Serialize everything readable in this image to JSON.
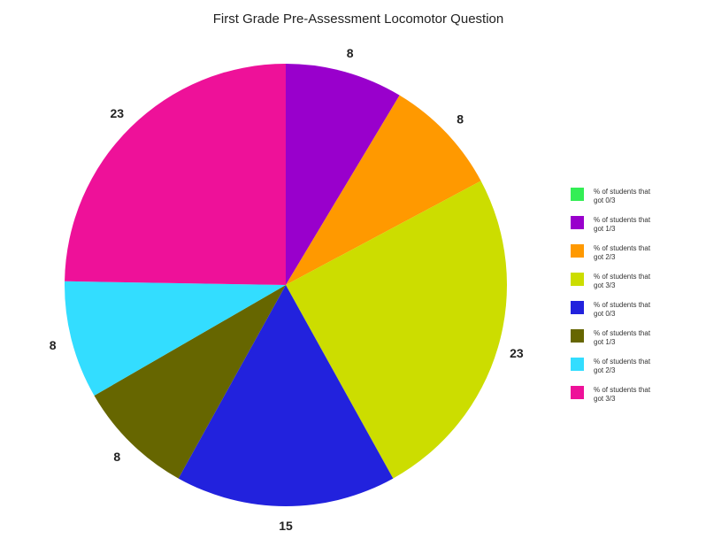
{
  "chart_data": {
    "type": "pie",
    "title": "First Grade Pre-Assessment Locomotor Question",
    "legend_position": "right",
    "slices": [
      {
        "name": "% of students that got 0/3",
        "value": 0,
        "label": "",
        "color": "#33ee55"
      },
      {
        "name": "% of students that got 1/3",
        "value": 8,
        "label": "8",
        "color": "#9900cc"
      },
      {
        "name": "% of students that got 2/3",
        "value": 8,
        "label": "8",
        "color": "#ff9900"
      },
      {
        "name": "% of students that got 3/3",
        "value": 23,
        "label": "23",
        "color": "#ccdd00"
      },
      {
        "name": "% of students that got 0/3",
        "value": 15,
        "label": "15",
        "color": "#2222dd"
      },
      {
        "name": "% of students that got 1/3",
        "value": 8,
        "label": "8",
        "color": "#666600"
      },
      {
        "name": "% of students that got 2/3",
        "value": 8,
        "label": "8",
        "color": "#33ddff"
      },
      {
        "name": "% of students that got 3/3",
        "value": 23,
        "label": "23",
        "color": "#ee1199"
      }
    ]
  }
}
